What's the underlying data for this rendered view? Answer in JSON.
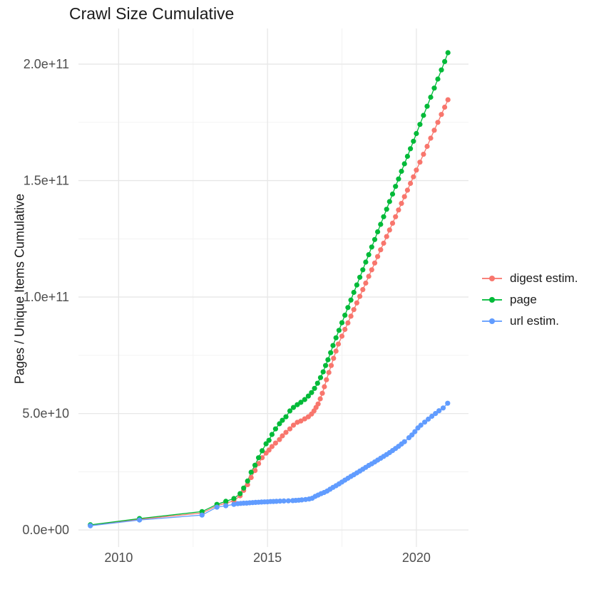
{
  "title": "Crawl Size Cumulative",
  "axes": {
    "y_label": "Pages / Unique Items Cumulative",
    "y_tick_labels": [
      "0.0e+00",
      "5.0e+10",
      "1.0e+11",
      "1.5e+11",
      "2.0e+11"
    ],
    "x_tick_labels": [
      "2010",
      "2015",
      "2020"
    ]
  },
  "legend": [
    {
      "label": "digest estim.",
      "color": "#F8766D"
    },
    {
      "label": "page",
      "color": "#00BA38"
    },
    {
      "label": "url estim.",
      "color": "#619CFF"
    }
  ],
  "colors": {
    "digest": "#F8766D",
    "page": "#00BA38",
    "url": "#619CFF",
    "grid_major": "#E7E7E7",
    "grid_minor": "#F3F3F3",
    "tick_text": "#4d4d4d",
    "title_text": "#1a1a1a"
  },
  "chart_data": {
    "type": "scatter",
    "title": "Crawl Size Cumulative",
    "xlabel": "",
    "ylabel": "Pages / Unique Items Cumulative",
    "x_unit": "year",
    "y_unit": "pages / unique items (values in 1e9)",
    "xlim": [
      2008.65,
      2021.75
    ],
    "ylim_e9": [
      -7.3,
      215.3
    ],
    "x_tick_values": [
      2010,
      2015,
      2020
    ],
    "x_minor_tick_values": [
      2012.5,
      2017.5
    ],
    "y_tick_values_e9": [
      0,
      50,
      100,
      150,
      200
    ],
    "y_minor_tick_values_e9": [
      25,
      75,
      125,
      175
    ],
    "grid": true,
    "legend_position": "right",
    "point_radius": 3.6,
    "series": [
      {
        "name": "digest estim.",
        "color": "#F8766D",
        "points": [
          [
            2009.05,
            2.0
          ],
          [
            2010.7,
            4.6
          ],
          [
            2012.8,
            7.3
          ],
          [
            2013.3,
            10.4
          ],
          [
            2013.6,
            11.5
          ],
          [
            2013.87,
            12.5
          ],
          [
            2014.08,
            14.7
          ],
          [
            2014.2,
            17.0
          ],
          [
            2014.33,
            19.5
          ],
          [
            2014.45,
            22.5
          ],
          [
            2014.58,
            25.5
          ],
          [
            2014.7,
            28.5
          ],
          [
            2014.82,
            31.0
          ],
          [
            2014.95,
            33.0
          ],
          [
            2015.05,
            34.3
          ],
          [
            2015.15,
            35.8
          ],
          [
            2015.27,
            37.3
          ],
          [
            2015.4,
            38.8
          ],
          [
            2015.5,
            40.4
          ],
          [
            2015.62,
            41.9
          ],
          [
            2015.75,
            43.4
          ],
          [
            2015.87,
            45.0
          ],
          [
            2016.0,
            46.2
          ],
          [
            2016.12,
            46.8
          ],
          [
            2016.25,
            47.7
          ],
          [
            2016.37,
            48.6
          ],
          [
            2016.48,
            49.8
          ],
          [
            2016.56,
            51.1
          ],
          [
            2016.63,
            52.6
          ],
          [
            2016.7,
            54.1
          ],
          [
            2016.77,
            56.3
          ],
          [
            2016.84,
            58.7
          ],
          [
            2016.91,
            61.5
          ],
          [
            2016.98,
            64.5
          ],
          [
            2017.06,
            67.6
          ],
          [
            2017.14,
            70.6
          ],
          [
            2017.22,
            73.7
          ],
          [
            2017.3,
            76.8
          ],
          [
            2017.38,
            79.8
          ],
          [
            2017.5,
            83.2
          ],
          [
            2017.6,
            86.1
          ],
          [
            2017.7,
            88.9
          ],
          [
            2017.8,
            91.8
          ],
          [
            2017.9,
            94.6
          ],
          [
            2018.0,
            97.5
          ],
          [
            2018.1,
            100.3
          ],
          [
            2018.2,
            103.2
          ],
          [
            2018.3,
            106.0
          ],
          [
            2018.4,
            108.9
          ],
          [
            2018.5,
            111.7
          ],
          [
            2018.6,
            114.6
          ],
          [
            2018.7,
            117.4
          ],
          [
            2018.8,
            120.3
          ],
          [
            2018.9,
            123.1
          ],
          [
            2019.0,
            126.0
          ],
          [
            2019.1,
            128.8
          ],
          [
            2019.2,
            131.7
          ],
          [
            2019.3,
            134.5
          ],
          [
            2019.4,
            137.4
          ],
          [
            2019.5,
            140.2
          ],
          [
            2019.6,
            143.1
          ],
          [
            2019.7,
            145.9
          ],
          [
            2019.8,
            148.8
          ],
          [
            2019.9,
            151.6
          ],
          [
            2020.0,
            154.5
          ],
          [
            2020.12,
            157.9
          ],
          [
            2020.24,
            161.3
          ],
          [
            2020.36,
            164.7
          ],
          [
            2020.48,
            168.2
          ],
          [
            2020.6,
            171.6
          ],
          [
            2020.72,
            175.0
          ],
          [
            2020.84,
            178.4
          ],
          [
            2020.95,
            181.5
          ],
          [
            2021.06,
            184.7
          ]
        ]
      },
      {
        "name": "page",
        "color": "#00BA38",
        "points": [
          [
            2009.05,
            2.2
          ],
          [
            2010.7,
            4.9
          ],
          [
            2012.8,
            7.9
          ],
          [
            2013.3,
            11.0
          ],
          [
            2013.6,
            12.3
          ],
          [
            2013.87,
            13.5
          ],
          [
            2014.08,
            15.6
          ],
          [
            2014.2,
            18.0
          ],
          [
            2014.33,
            21.0
          ],
          [
            2014.45,
            24.8
          ],
          [
            2014.58,
            27.8
          ],
          [
            2014.7,
            31.0
          ],
          [
            2014.82,
            34.0
          ],
          [
            2014.95,
            37.0
          ],
          [
            2015.05,
            38.5
          ],
          [
            2015.15,
            41.0
          ],
          [
            2015.27,
            43.4
          ],
          [
            2015.4,
            45.6
          ],
          [
            2015.5,
            47.1
          ],
          [
            2015.62,
            48.6
          ],
          [
            2015.75,
            51.1
          ],
          [
            2015.87,
            52.6
          ],
          [
            2016.0,
            53.8
          ],
          [
            2016.12,
            54.8
          ],
          [
            2016.25,
            56.0
          ],
          [
            2016.37,
            57.5
          ],
          [
            2016.48,
            59.0
          ],
          [
            2016.58,
            60.8
          ],
          [
            2016.68,
            63.0
          ],
          [
            2016.78,
            65.4
          ],
          [
            2016.87,
            67.9
          ],
          [
            2016.95,
            70.6
          ],
          [
            2017.03,
            73.1
          ],
          [
            2017.12,
            76.1
          ],
          [
            2017.2,
            79.2
          ],
          [
            2017.3,
            82.5
          ],
          [
            2017.4,
            85.7
          ],
          [
            2017.5,
            89.0
          ],
          [
            2017.6,
            92.2
          ],
          [
            2017.7,
            95.5
          ],
          [
            2017.8,
            98.7
          ],
          [
            2017.9,
            102.0
          ],
          [
            2018.0,
            105.2
          ],
          [
            2018.1,
            108.5
          ],
          [
            2018.2,
            111.7
          ],
          [
            2018.3,
            115.0
          ],
          [
            2018.4,
            118.2
          ],
          [
            2018.5,
            121.5
          ],
          [
            2018.6,
            124.7
          ],
          [
            2018.7,
            128.0
          ],
          [
            2018.8,
            131.2
          ],
          [
            2018.9,
            134.5
          ],
          [
            2019.0,
            137.7
          ],
          [
            2019.1,
            141.0
          ],
          [
            2019.2,
            144.2
          ],
          [
            2019.3,
            147.5
          ],
          [
            2019.4,
            150.7
          ],
          [
            2019.5,
            154.0
          ],
          [
            2019.6,
            157.2
          ],
          [
            2019.7,
            160.4
          ],
          [
            2019.8,
            163.7
          ],
          [
            2019.9,
            166.9
          ],
          [
            2020.0,
            170.2
          ],
          [
            2020.12,
            174.1
          ],
          [
            2020.24,
            178.0
          ],
          [
            2020.36,
            181.9
          ],
          [
            2020.48,
            185.8
          ],
          [
            2020.6,
            189.7
          ],
          [
            2020.72,
            193.6
          ],
          [
            2020.84,
            197.5
          ],
          [
            2020.95,
            201.1
          ],
          [
            2021.06,
            204.9
          ]
        ]
      },
      {
        "name": "url estim.",
        "color": "#619CFF",
        "points": [
          [
            2009.05,
            1.8
          ],
          [
            2010.7,
            4.3
          ],
          [
            2012.8,
            6.4
          ],
          [
            2013.3,
            9.8
          ],
          [
            2013.6,
            10.4
          ],
          [
            2013.87,
            11.0
          ],
          [
            2014.0,
            11.3
          ],
          [
            2014.1,
            11.4
          ],
          [
            2014.2,
            11.5
          ],
          [
            2014.3,
            11.55
          ],
          [
            2014.4,
            11.65
          ],
          [
            2014.5,
            11.75
          ],
          [
            2014.6,
            11.85
          ],
          [
            2014.7,
            11.9
          ],
          [
            2014.8,
            12.0
          ],
          [
            2014.9,
            12.05
          ],
          [
            2015.0,
            12.1
          ],
          [
            2015.1,
            12.2
          ],
          [
            2015.2,
            12.25
          ],
          [
            2015.3,
            12.3
          ],
          [
            2015.42,
            12.4
          ],
          [
            2015.55,
            12.45
          ],
          [
            2015.7,
            12.5
          ],
          [
            2015.85,
            12.6
          ],
          [
            2015.95,
            12.7
          ],
          [
            2016.05,
            12.8
          ],
          [
            2016.15,
            12.9
          ],
          [
            2016.28,
            13.1
          ],
          [
            2016.4,
            13.3
          ],
          [
            2016.5,
            13.6
          ],
          [
            2016.6,
            14.4
          ],
          [
            2016.7,
            15.0
          ],
          [
            2016.8,
            15.6
          ],
          [
            2016.9,
            16.1
          ],
          [
            2017.0,
            16.7
          ],
          [
            2017.1,
            17.5
          ],
          [
            2017.2,
            18.3
          ],
          [
            2017.3,
            19.0
          ],
          [
            2017.4,
            19.8
          ],
          [
            2017.5,
            20.6
          ],
          [
            2017.6,
            21.4
          ],
          [
            2017.7,
            22.2
          ],
          [
            2017.8,
            23.0
          ],
          [
            2017.9,
            23.7
          ],
          [
            2018.0,
            24.5
          ],
          [
            2018.1,
            25.3
          ],
          [
            2018.2,
            26.1
          ],
          [
            2018.3,
            26.9
          ],
          [
            2018.4,
            27.7
          ],
          [
            2018.5,
            28.4
          ],
          [
            2018.6,
            29.2
          ],
          [
            2018.7,
            30.0
          ],
          [
            2018.8,
            30.8
          ],
          [
            2018.9,
            31.6
          ],
          [
            2019.0,
            32.4
          ],
          [
            2019.1,
            33.2
          ],
          [
            2019.2,
            34.1
          ],
          [
            2019.3,
            35.0
          ],
          [
            2019.4,
            35.9
          ],
          [
            2019.5,
            36.9
          ],
          [
            2019.6,
            37.9
          ],
          [
            2019.75,
            39.6
          ],
          [
            2019.85,
            40.8
          ],
          [
            2019.95,
            42.2
          ],
          [
            2020.05,
            43.8
          ],
          [
            2020.15,
            45.0
          ],
          [
            2020.28,
            46.3
          ],
          [
            2020.4,
            47.6
          ],
          [
            2020.52,
            48.8
          ],
          [
            2020.64,
            50.0
          ],
          [
            2020.76,
            51.2
          ],
          [
            2020.9,
            52.4
          ],
          [
            2021.05,
            54.4
          ]
        ]
      }
    ]
  }
}
